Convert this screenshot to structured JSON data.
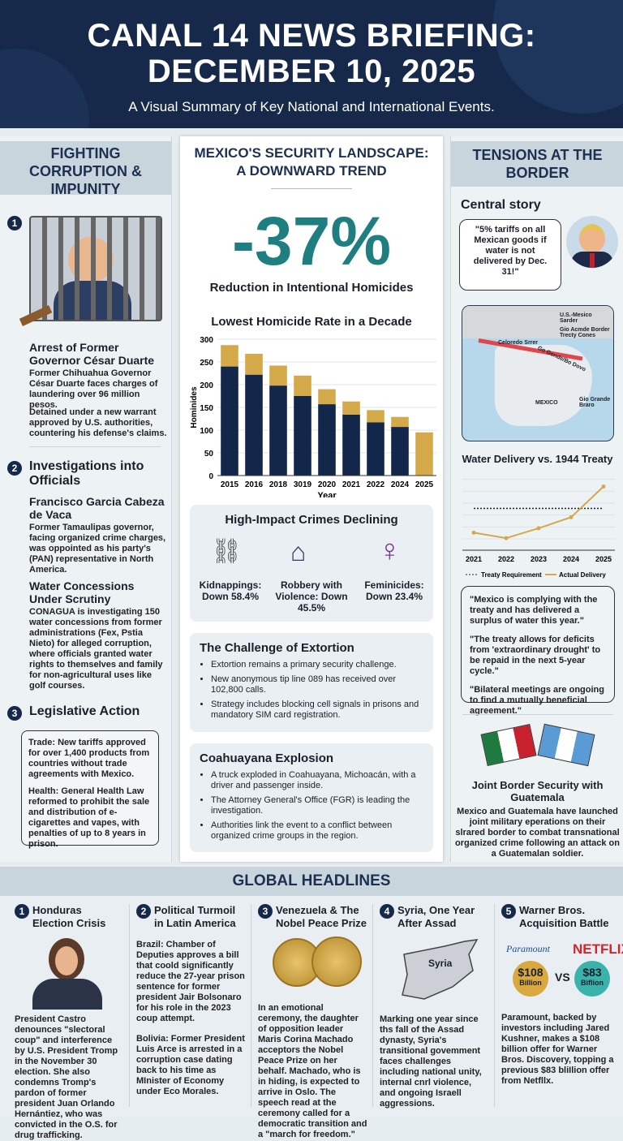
{
  "header": {
    "title_line1": "CANAL 14 NEWS BRIEFING:",
    "title_line2": "DECEMBER 10, 2025",
    "subtitle": "A Visual Summary of Key National and International Events."
  },
  "left": {
    "title": "FIGHTING CORRUPTION & IMPUNITY",
    "s1": {
      "num": "1",
      "heading": "Arrest of Former Governor César Duarte",
      "p1": "Former Chihuahua Governor César Duarte faces charges of laundering over 96 million pesos.",
      "p2": "Detained under a new warrant approved by U.S. authorities, countering his defense's claims."
    },
    "s2": {
      "num": "2",
      "heading": "Investigations into Officials",
      "sub1": "Francisco Garcia Cabeza de Vaca",
      "p1": "Former Tamaulipas governor, facing organized crime charges, was oppointed as his party's (PAN) representative in North America.",
      "sub2": "Water Concessions Under Scrutiny",
      "p2": "CONAGUA is investigating 150 water concessions from former administrations (Fex, Pstia Nieto) for alleged corruption, where officials granted water rights to themselves and family for non-agricultural uses like golf courses."
    },
    "s3": {
      "num": "3",
      "heading": "Legislative Action",
      "p1": "Trade: New tariffs approved for over 1,400 products from countries without trade agreements with Mexico.",
      "p2": "Health: General Health Law reformed to prohibit the sale and distribution of e-cigarettes and vapes, with penalties of up to 8 years in prison."
    }
  },
  "mid": {
    "title": "MEXICO'S SECURITY LANDSCAPE: A DOWNWARD TREND",
    "big_stat": "-37%",
    "big_stat_label": "Reduction in Intentional Homicides",
    "crimes": {
      "title": "High-Impact Crimes Declining",
      "items": [
        {
          "icon": "broken-chain-icon",
          "label": "Kidnappings: Down 58.4%"
        },
        {
          "icon": "house-robbery-icon",
          "label": "Robbery with Violence: Down 45.5%"
        },
        {
          "icon": "female-symbol-icon",
          "label": "Feminicides: Down 23.4%"
        }
      ]
    },
    "extortion": {
      "title": "The Challenge of Extortion",
      "items": [
        "Extortion remains a primary security challenge.",
        "New anonymous tip line 089 has received over 102,800 calls.",
        "Strategy includes blocking cell signals in prisons and mandatory SIM card registration."
      ]
    },
    "explosion": {
      "title": "Coahuayana Explosion",
      "items": [
        "A truck exploded in Coahuayana, Michoacán, with a driver and passenger inside.",
        "The Attorney General's Office (FGR) is leading the investigation.",
        "Authorities link the event to a conflict between organized crime groups in the region."
      ]
    }
  },
  "right": {
    "title": "TENSIONS AT THE BORDER",
    "central_label": "Central story",
    "quote": "\"5% tariffs on all Mexican goods if water is not delivered by Dec. 31!\"",
    "map": {
      "legend1": "U.S.-Mesico Sarder",
      "legend2": "Gio Acmde Border Trecty Cones",
      "label_colorado": "Celoredo Srrer",
      "label_river": "Go Gonde/Bo Dovo",
      "label_mexico": "MEXICO",
      "label_rio": "Gio Grande Braro"
    },
    "responses": [
      "\"Mexico is complying with the treaty and has delivered a surplus of water this year.\"",
      "\"The treaty allows for deficits from 'extraordinary drought' to be repaid in the next 5-year cycle.\"",
      "\"Bilateral meetings are ongoing to find a mutually beneficial agreement.\""
    ],
    "guatemala": {
      "title": "Joint Border Security with Guatemala",
      "text": "Mexico and Guatemala have launched joint military eperations on their slrared border to combat transnational organized crime following an attack on a Guatemalan soldier."
    }
  },
  "chart_data": [
    {
      "type": "bar",
      "title": "Lowest Homicide Rate in a Decade",
      "xlabel": "Year",
      "ylabel": "Hominides",
      "ylim": [
        0,
        300
      ],
      "yticks": [
        "0",
        "50",
        "100",
        "150",
        "200",
        "250",
        "300"
      ],
      "grid": true,
      "stacked": true,
      "categories": [
        "2015",
        "2016",
        "2018",
        "3019",
        "2020",
        "2021",
        "2022",
        "2024",
        "2025"
      ],
      "series": [
        {
          "color": "#13274a",
          "values": [
            240,
            222,
            198,
            175,
            157,
            134,
            117,
            107,
            0
          ]
        },
        {
          "color": "#d4a94a",
          "values": [
            47,
            46,
            44,
            45,
            33,
            29,
            27,
            22,
            95
          ]
        }
      ]
    },
    {
      "type": "line",
      "title": "Water Delivery vs. 1944 Treaty",
      "categories": [
        "2021",
        "2022",
        "2023",
        "2024",
        "2025"
      ],
      "grid": true,
      "legend": "bottom",
      "series": [
        {
          "name": "Treaty Requirement",
          "color": "#222222",
          "style": "dotted",
          "values": [
            3.8,
            3.8,
            3.8,
            3.8,
            3.8
          ]
        },
        {
          "name": "Actual Delivery",
          "color": "#d4a94a",
          "values": [
            1.6,
            1.1,
            2.0,
            3.0,
            5.8
          ]
        }
      ],
      "ylim": [
        0,
        6.5
      ]
    }
  ],
  "global": {
    "title": "GLOBAL HEADLINES",
    "items": [
      {
        "num": "1",
        "title": "Honduras Election Crisis",
        "text": "President Castro denounces \"slectoral coup\" and interference by U.S. President Tromp in the November 30 election. She also condemns Tromp's pardon of former president Juan Orlando Hernántiez, who was convicted in the O.S. for drug trafficking."
      },
      {
        "num": "2",
        "title": "Political Turmoil in Latin America",
        "text": "Brazil: Chamber of Deputies approves a bill that coold significantly reduce the 27-year prison sentence for former president Jair Bolsonaro for his role in the 2023 coup attempt.",
        "text2": "Bolivia: Former President Luis Arce is arrested in a corruption case dating back to his time as MInister of Economy under Eco Morales."
      },
      {
        "num": "3",
        "title": "Venezuela & The Nobel Peace Prize",
        "text": "In an emotional ceremony, the daughter of opposition leader Maris Corina Machado acceptors the Nobel Peace Prize on her behalf. Machado, who is in hiding, is expected to arrive in Oslo. The speech read at the ceremony called for a democratic transition and a \"march for freedom.\""
      },
      {
        "num": "4",
        "title": "Syria, One Year After Assad",
        "map_label": "Syria",
        "text": "Marking one year since ths fall of the Assad dynasty, Syria's transitional govemment faces challenges including national unity, internal cnrl violence, and ongoing Israell aggressions."
      },
      {
        "num": "5",
        "title": "Warner Bros. Acquisition Battle",
        "logo_left": "Paramount",
        "logo_right": "NETFLIX",
        "amount_left": "$108",
        "unit_left": "Billion",
        "vs": "VS",
        "amount_right": "$83",
        "unit_right": "Biflion",
        "text": "Paramount, backed by investors including Jared Kushner, makes a $108 billion offer for Warner Bros. Discovery, topping a previous $83 bliIlion offer from Netfllx."
      }
    ]
  }
}
